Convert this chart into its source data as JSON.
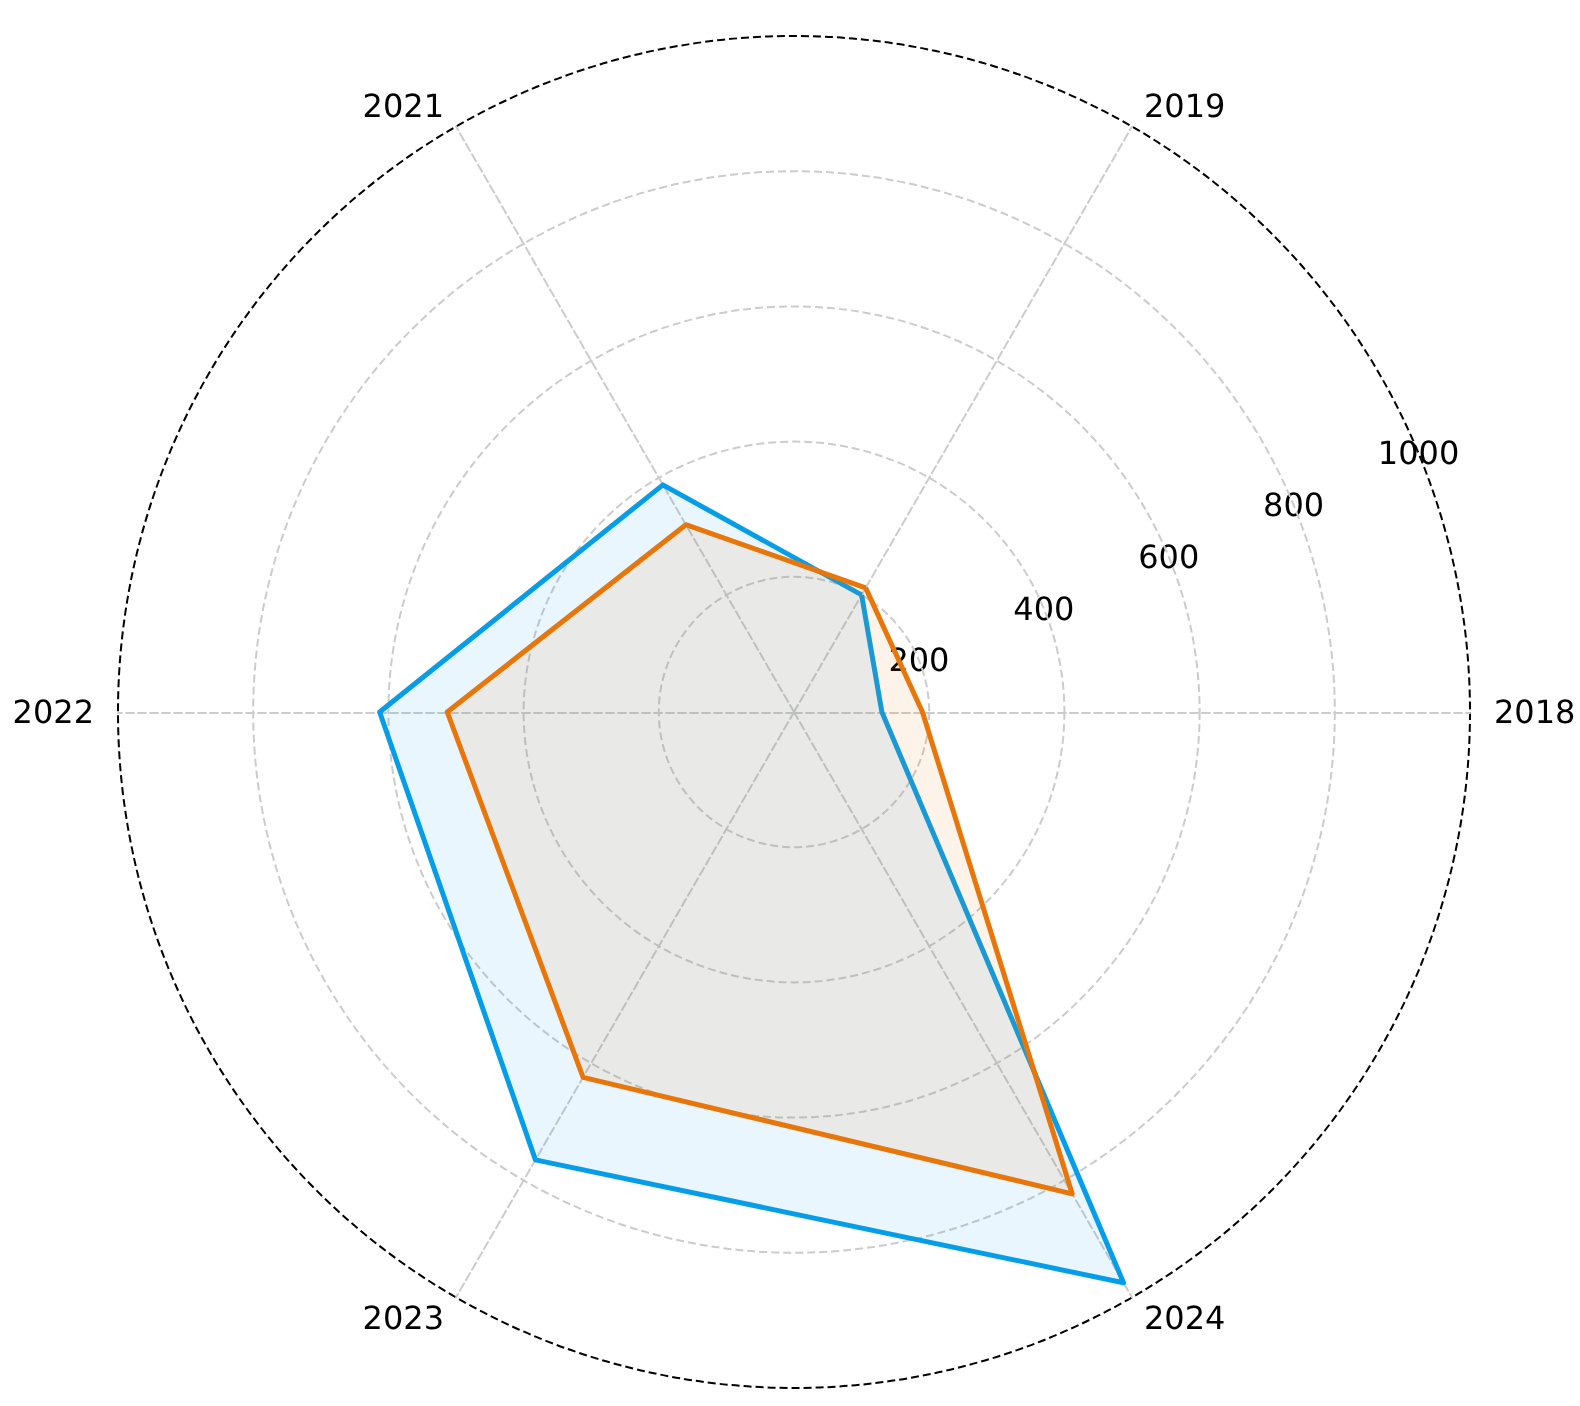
{
  "chart_data": {
    "type": "radar",
    "categories": [
      "2019",
      "2018",
      "2024",
      "2023",
      "2022",
      "2021"
    ],
    "series": [
      {
        "color": "#069ee8",
        "values": [
          200,
          130,
          975,
          765,
          613,
          388
        ]
      },
      {
        "color": "#e8760a",
        "values": [
          212,
          190,
          823,
          624,
          513,
          320
        ]
      }
    ],
    "ylim": [
      0,
      1000
    ],
    "yticks": [
      200,
      400,
      600,
      800,
      1000
    ],
    "grid": true,
    "marker": "none",
    "line_style": "solid"
  }
}
